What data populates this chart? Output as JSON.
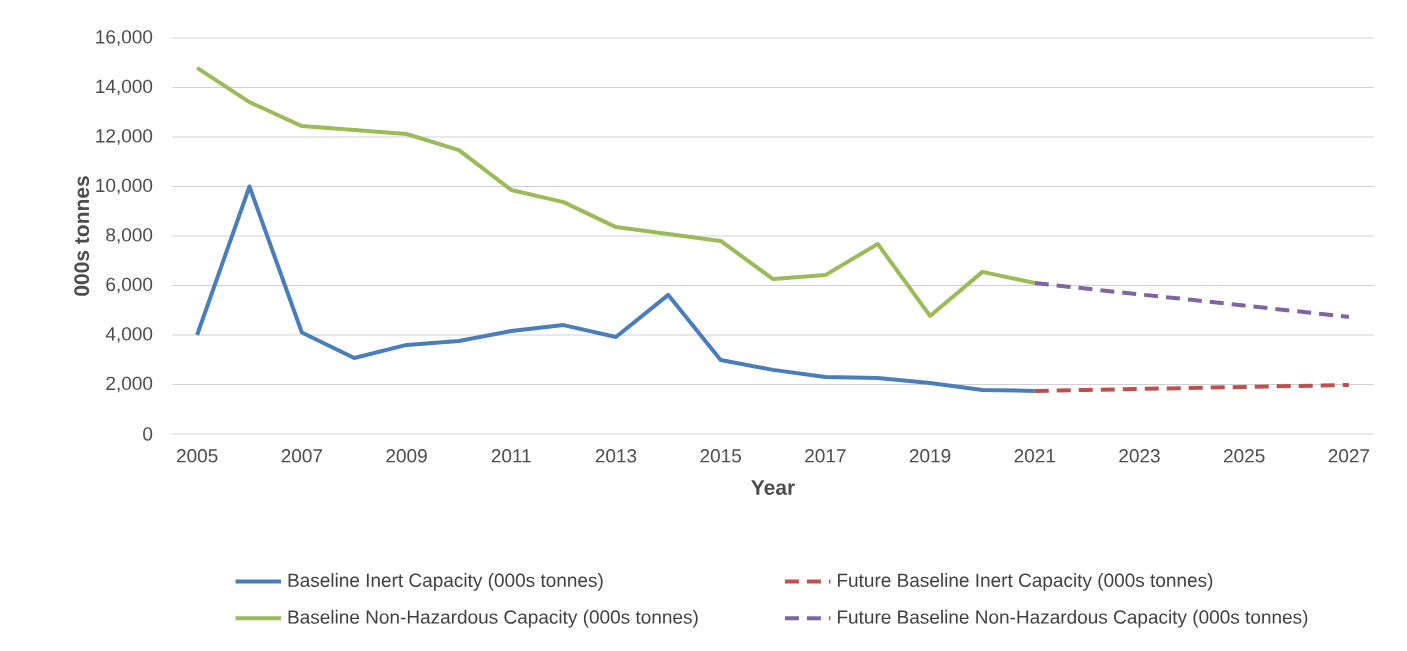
{
  "chart_data": {
    "type": "line",
    "xlabel": "Year",
    "ylabel": "000s tonnes",
    "xlim": [
      2004.52,
      2027.48
    ],
    "xticks": [
      2005,
      2007,
      2009,
      2011,
      2013,
      2015,
      2017,
      2019,
      2021,
      2023,
      2025,
      2027
    ],
    "ylim": [
      0,
      16000
    ],
    "yticks": [
      0,
      {
        "value": 2000,
        "label": "2,000"
      },
      {
        "value": 4000,
        "label": "4,000"
      },
      {
        "value": 6000,
        "label": "6,000"
      },
      {
        "value": 8000,
        "label": "8,000"
      },
      {
        "value": 10000,
        "label": "10,000"
      },
      {
        "value": 12000,
        "label": "12,000"
      },
      {
        "value": 14000,
        "label": "14,000"
      },
      {
        "value": 16000,
        "label": "16,000"
      }
    ],
    "grid": "y",
    "legend": "bottom",
    "marker": "none",
    "series": [
      {
        "name": "Baseline Inert Capacity (000s tonnes)",
        "color": "#4a7ebb",
        "line_style": "solid",
        "x": [
          2005,
          2006,
          2007,
          2008,
          2009,
          2010,
          2011,
          2012,
          2013,
          2014,
          2015,
          2016,
          2017,
          2018,
          2019,
          2020,
          2021
        ],
        "values": [
          4000,
          10000,
          4100,
          3070,
          3600,
          3760,
          4160,
          4400,
          3920,
          5620,
          2990,
          2590,
          2300,
          2260,
          2060,
          1780,
          1740
        ]
      },
      {
        "name": "Future Baseline Inert Capacity (000s tonnes)",
        "color": "#c0504d",
        "line_style": "dashed",
        "x": [
          2021,
          2022,
          2023,
          2024,
          2025,
          2026,
          2027
        ],
        "values": [
          1740,
          1780,
          1820,
          1860,
          1900,
          1940,
          1980
        ]
      },
      {
        "name": "Baseline Non-Hazardous Capacity (000s tonnes)",
        "color": "#9bbb59",
        "line_style": "solid",
        "x": [
          2005,
          2006,
          2007,
          2008,
          2009,
          2010,
          2011,
          2012,
          2013,
          2014,
          2015,
          2016,
          2017,
          2018,
          2019,
          2020,
          2021
        ],
        "values": [
          14790,
          13410,
          12440,
          12280,
          12120,
          11470,
          9860,
          9370,
          8360,
          8080,
          7800,
          6260,
          6420,
          7680,
          4770,
          6550,
          6100
        ]
      },
      {
        "name": "Future Baseline Non-Hazardous Capacity (000s tonnes)",
        "color": "#8064a2",
        "line_style": "dashed",
        "x": [
          2021,
          2022,
          2023,
          2024,
          2025,
          2026,
          2027
        ],
        "values": [
          6100,
          5870,
          5640,
          5420,
          5190,
          4960,
          4730
        ]
      }
    ]
  }
}
